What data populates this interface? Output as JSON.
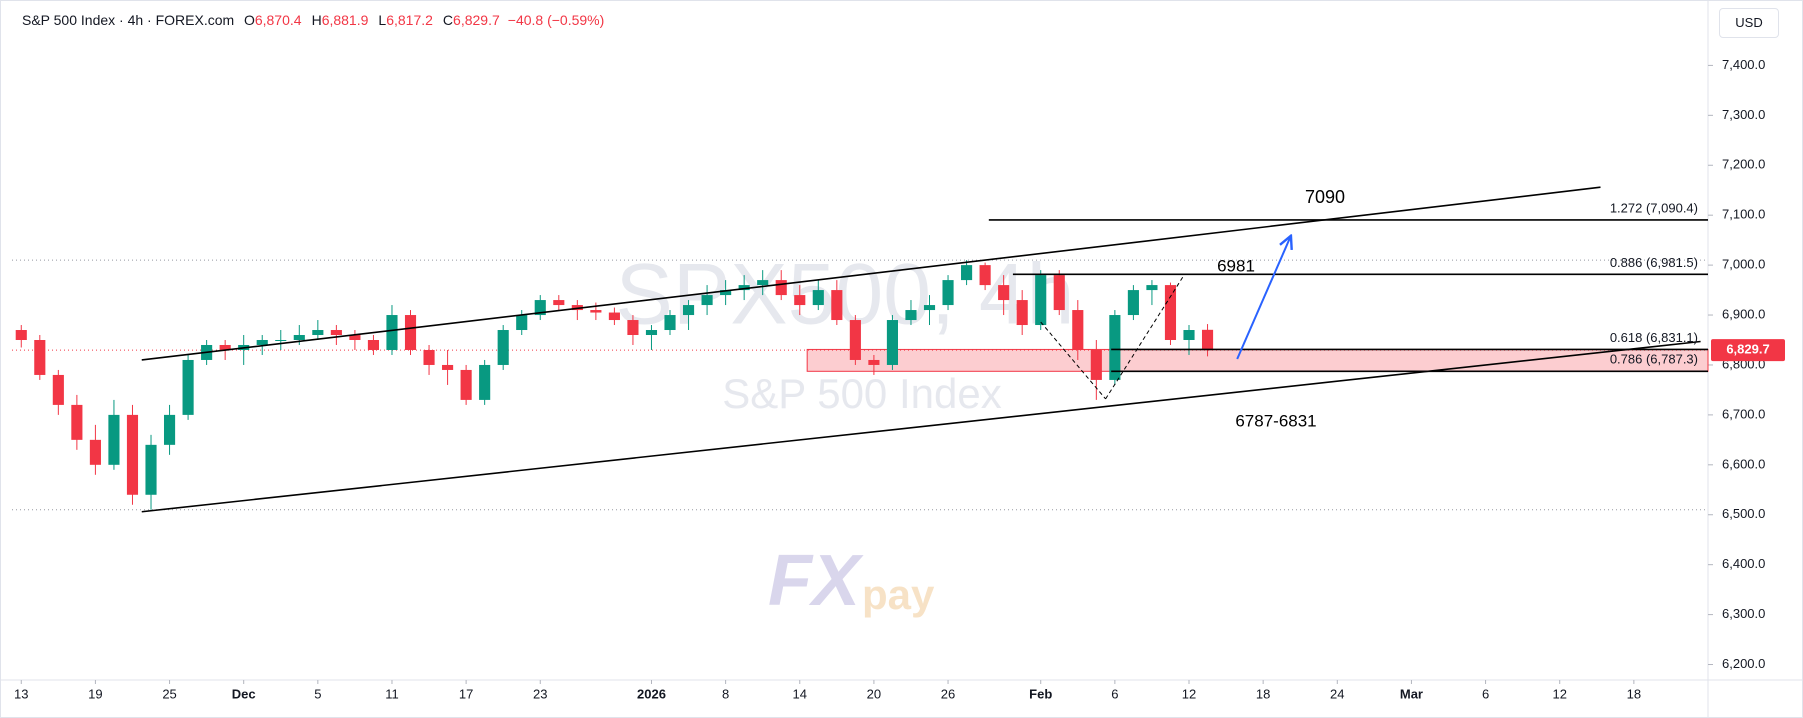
{
  "header": {
    "symbol": "S&P 500 Index · 4h · FOREX.com",
    "open_label": "O",
    "open": "6,870.4",
    "high_label": "H",
    "high": "6,881.9",
    "low_label": "L",
    "low": "6,817.2",
    "close_label": "C",
    "close": "6,829.7",
    "change": "−40.8 (−0.59%)"
  },
  "logo": {
    "main": "FX",
    "sub": "pay"
  },
  "chart_data": {
    "type": "candlestick",
    "title": "SPX500, 4h",
    "subtitle": "S&P 500 Index",
    "currency": "USD",
    "up_color": "#089981",
    "down_color": "#f23645",
    "ohlc": [
      [
        6870,
        6880,
        6835,
        6850
      ],
      [
        6850,
        6860,
        6770,
        6780
      ],
      [
        6780,
        6790,
        6700,
        6720
      ],
      [
        6720,
        6740,
        6630,
        6650
      ],
      [
        6650,
        6680,
        6580,
        6600
      ],
      [
        6600,
        6730,
        6590,
        6700
      ],
      [
        6700,
        6720,
        6520,
        6540
      ],
      [
        6540,
        6660,
        6510,
        6640
      ],
      [
        6640,
        6720,
        6620,
        6700
      ],
      [
        6700,
        6820,
        6690,
        6810
      ],
      [
        6810,
        6850,
        6800,
        6840
      ],
      [
        6840,
        6850,
        6810,
        6830
      ],
      [
        6830,
        6860,
        6800,
        6840
      ],
      [
        6840,
        6860,
        6820,
        6850
      ],
      [
        6850,
        6870,
        6830,
        6850
      ],
      [
        6850,
        6880,
        6840,
        6860
      ],
      [
        6860,
        6890,
        6850,
        6870
      ],
      [
        6870,
        6880,
        6840,
        6860
      ],
      [
        6860,
        6870,
        6830,
        6850
      ],
      [
        6850,
        6860,
        6820,
        6830
      ],
      [
        6830,
        6920,
        6820,
        6900
      ],
      [
        6900,
        6910,
        6820,
        6830
      ],
      [
        6830,
        6840,
        6780,
        6800
      ],
      [
        6800,
        6830,
        6760,
        6790
      ],
      [
        6790,
        6800,
        6720,
        6730
      ],
      [
        6730,
        6810,
        6720,
        6800
      ],
      [
        6800,
        6880,
        6790,
        6870
      ],
      [
        6870,
        6910,
        6860,
        6900
      ],
      [
        6900,
        6940,
        6890,
        6930
      ],
      [
        6930,
        6940,
        6910,
        6920
      ],
      [
        6920,
        6930,
        6890,
        6910
      ],
      [
        6910,
        6925,
        6890,
        6905
      ],
      [
        6905,
        6915,
        6880,
        6890
      ],
      [
        6890,
        6900,
        6840,
        6860
      ],
      [
        6860,
        6880,
        6830,
        6870
      ],
      [
        6870,
        6910,
        6860,
        6900
      ],
      [
        6900,
        6930,
        6870,
        6920
      ],
      [
        6920,
        6960,
        6900,
        6940
      ],
      [
        6940,
        6970,
        6920,
        6950
      ],
      [
        6950,
        6980,
        6930,
        6960
      ],
      [
        6960,
        6990,
        6940,
        6970
      ],
      [
        6970,
        6990,
        6930,
        6940
      ],
      [
        6940,
        6960,
        6900,
        6920
      ],
      [
        6920,
        6970,
        6910,
        6950
      ],
      [
        6950,
        6970,
        6880,
        6890
      ],
      [
        6890,
        6900,
        6800,
        6810
      ],
      [
        6810,
        6820,
        6780,
        6800
      ],
      [
        6800,
        6900,
        6790,
        6890
      ],
      [
        6890,
        6930,
        6880,
        6910
      ],
      [
        6910,
        6940,
        6880,
        6920
      ],
      [
        6920,
        6980,
        6910,
        6970
      ],
      [
        6970,
        7010,
        6960,
        7000
      ],
      [
        7000,
        7005,
        6950,
        6960
      ],
      [
        6960,
        6980,
        6900,
        6930
      ],
      [
        6930,
        6950,
        6860,
        6880
      ],
      [
        6880,
        6990,
        6870,
        6980
      ],
      [
        6980,
        6990,
        6900,
        6910
      ],
      [
        6910,
        6930,
        6810,
        6830
      ],
      [
        6830,
        6850,
        6730,
        6770
      ],
      [
        6770,
        6910,
        6760,
        6900
      ],
      [
        6900,
        6960,
        6890,
        6950
      ],
      [
        6950,
        6970,
        6920,
        6960
      ],
      [
        6960,
        6965,
        6840,
        6850
      ],
      [
        6850,
        6880,
        6820,
        6870
      ],
      [
        6870.4,
        6881.9,
        6817.2,
        6829.7
      ]
    ],
    "last_price_label": "6,829.7",
    "xlim": [
      -0.5,
      91
    ],
    "xticks": [
      {
        "value": 0,
        "label": "13"
      },
      {
        "value": 4,
        "label": "19"
      },
      {
        "value": 8,
        "label": "25"
      },
      {
        "value": 12,
        "label": "Dec"
      },
      {
        "value": 16,
        "label": "5"
      },
      {
        "value": 20,
        "label": "11"
      },
      {
        "value": 24,
        "label": "17"
      },
      {
        "value": 28,
        "label": "23"
      },
      {
        "value": 34,
        "label": "2026"
      },
      {
        "value": 38,
        "label": "8"
      },
      {
        "value": 42,
        "label": "14"
      },
      {
        "value": 46,
        "label": "20"
      },
      {
        "value": 50,
        "label": "26"
      },
      {
        "value": 55,
        "label": "Feb"
      },
      {
        "value": 59,
        "label": "6"
      },
      {
        "value": 63,
        "label": "12"
      },
      {
        "value": 67,
        "label": "18"
      },
      {
        "value": 71,
        "label": "24"
      },
      {
        "value": 75,
        "label": "Mar"
      },
      {
        "value": 79,
        "label": "6"
      },
      {
        "value": 83,
        "label": "12"
      },
      {
        "value": 87,
        "label": "18"
      }
    ],
    "ylim": [
      6169,
      7531
    ],
    "yticks": [
      {
        "value": 6200,
        "label": "6,200.0"
      },
      {
        "value": 6300,
        "label": "6,300.0"
      },
      {
        "value": 6400,
        "label": "6,400.0"
      },
      {
        "value": 6500,
        "label": "6,500.0"
      },
      {
        "value": 6600,
        "label": "6,600.0"
      },
      {
        "value": 6700,
        "label": "6,700.0"
      },
      {
        "value": 6800,
        "label": "6,800.0"
      },
      {
        "value": 6900,
        "label": "6,900.0"
      },
      {
        "value": 7000,
        "label": "7,000.0"
      },
      {
        "value": 7100,
        "label": "7,100.0"
      },
      {
        "value": 7200,
        "label": "7,200.0"
      },
      {
        "value": 7300,
        "label": "7,300.0"
      },
      {
        "value": 7400,
        "label": "7,400.0"
      }
    ],
    "trendlines": [
      {
        "x": [
          6.5,
          85.2
        ],
        "y": [
          6810,
          7156
        ]
      },
      {
        "x": [
          6.5,
          90.6
        ],
        "y": [
          6506,
          6847
        ]
      }
    ],
    "dashed_lines": [
      {
        "x": [
          55,
          58.5
        ],
        "y": [
          6886,
          6732
        ]
      },
      {
        "x": [
          58.5,
          62.7
        ],
        "y": [
          6732,
          6978
        ]
      }
    ],
    "arrow": {
      "x": [
        65.6,
        68.5
      ],
      "y": [
        6812,
        7059
      ]
    },
    "levels": [
      {
        "value": 7090.4,
        "label": "1.272 (7,090.4)",
        "x_start": 52.2
      },
      {
        "value": 6981.5,
        "label": "0.886 (6,981.5)",
        "x_start": 53.5
      },
      {
        "value": 6831.1,
        "label": "0.618 (6,831.1)",
        "x_start": 58.8
      },
      {
        "value": 6787.3,
        "label": "0.786 (6,787.3)",
        "x_start": 58.8
      }
    ],
    "zone": {
      "x_start": 42.4,
      "y": [
        6787.3,
        6831.1
      ]
    },
    "annotations": [
      "7090",
      "6981",
      "6787-6831"
    ]
  }
}
